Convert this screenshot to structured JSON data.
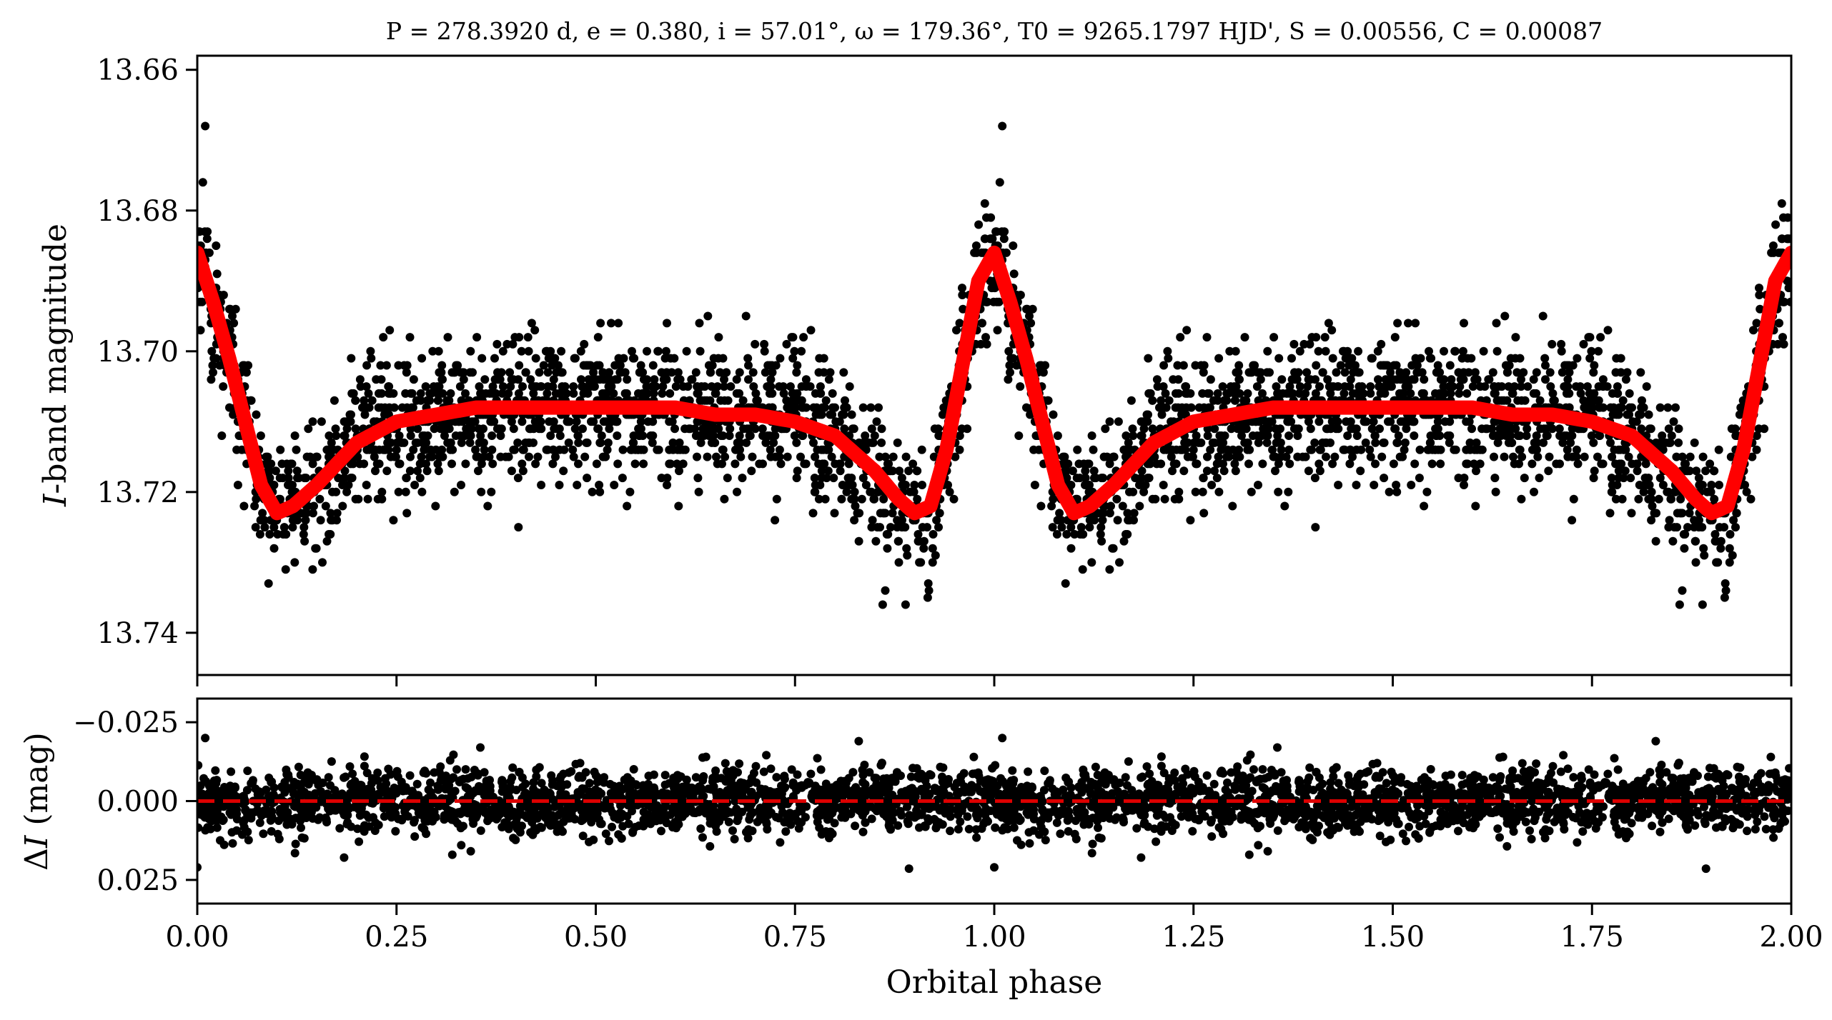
{
  "chart_data": [
    {
      "type": "scatter",
      "panel": "light curve",
      "title": "P = 278.3920 d, e = 0.380, i = 57.01°, ω = 179.36°, T0 = 9265.1797 HJD', S = 0.00556, C = 0.00087",
      "parameters": {
        "P_days": 278.392,
        "e": 0.38,
        "i_deg": 57.01,
        "omega_deg": 179.36,
        "T0_HJD": 9265.1797,
        "S": 0.00556,
        "C": 0.00087
      },
      "xlabel": "",
      "ylabel": "I-band magnitude",
      "xlim": [
        0.0,
        2.0
      ],
      "ylim": [
        13.746,
        13.658
      ],
      "y_inverted": true,
      "y_ticks": [
        "13.66",
        "13.68",
        "13.70",
        "13.72",
        "13.74"
      ],
      "y_tick_values": [
        13.66,
        13.68,
        13.7,
        13.72,
        13.74
      ],
      "x_ticks": [
        0.0,
        0.25,
        0.5,
        0.75,
        1.0,
        1.25,
        1.5,
        1.75,
        2.0
      ],
      "x_tick_labels_shown": false,
      "grid": false,
      "series": [
        {
          "kind": "points",
          "color": "#000000",
          "description_from_plot": "phase-folded observations, repeated over two cycles",
          "binned_mean_magnitude": {
            "x": [
              0.0,
              0.02,
              0.04,
              0.06,
              0.08,
              0.1,
              0.12,
              0.15,
              0.2,
              0.25,
              0.3,
              0.35,
              0.4,
              0.45,
              0.5,
              0.55,
              0.6,
              0.65,
              0.7,
              0.75,
              0.8,
              0.85,
              0.88,
              0.9,
              0.92,
              0.94,
              0.96,
              0.98,
              1.0
            ],
            "y": [
              13.686,
              13.693,
              13.7,
              13.71,
              13.719,
              13.723,
              13.722,
              13.719,
              13.713,
              13.71,
              13.709,
              13.708,
              13.708,
              13.708,
              13.708,
              13.708,
              13.708,
              13.709,
              13.709,
              13.71,
              13.712,
              13.717,
              13.721,
              13.723,
              13.722,
              13.714,
              13.702,
              13.69,
              13.686
            ]
          },
          "scatter_sigma_mag": 0.005,
          "outliers": [
            {
              "x": 0.01,
              "y": 13.668
            },
            {
              "x": 1.01,
              "y": 13.668
            },
            {
              "x": 0.86,
              "y": 13.736
            },
            {
              "x": 1.86,
              "y": 13.736
            }
          ]
        },
        {
          "kind": "line",
          "color": "#ff0000",
          "description_from_plot": "model fit",
          "x": [
            0.0,
            0.02,
            0.04,
            0.06,
            0.08,
            0.1,
            0.12,
            0.15,
            0.2,
            0.25,
            0.3,
            0.35,
            0.4,
            0.45,
            0.5,
            0.55,
            0.6,
            0.65,
            0.7,
            0.75,
            0.8,
            0.85,
            0.88,
            0.9,
            0.92,
            0.94,
            0.96,
            0.98,
            1.0,
            1.02,
            1.04,
            1.06,
            1.08,
            1.1,
            1.12,
            1.15,
            1.2,
            1.25,
            1.3,
            1.35,
            1.4,
            1.45,
            1.5,
            1.55,
            1.6,
            1.65,
            1.7,
            1.75,
            1.8,
            1.85,
            1.88,
            1.9,
            1.92,
            1.94,
            1.96,
            1.98,
            2.0
          ],
          "y": [
            13.686,
            13.693,
            13.701,
            13.71,
            13.719,
            13.723,
            13.722,
            13.719,
            13.713,
            13.71,
            13.709,
            13.708,
            13.708,
            13.708,
            13.708,
            13.708,
            13.708,
            13.709,
            13.709,
            13.71,
            13.712,
            13.717,
            13.721,
            13.723,
            13.722,
            13.714,
            13.702,
            13.69,
            13.686,
            13.693,
            13.701,
            13.71,
            13.719,
            13.723,
            13.722,
            13.719,
            13.713,
            13.71,
            13.709,
            13.708,
            13.708,
            13.708,
            13.708,
            13.708,
            13.708,
            13.709,
            13.709,
            13.71,
            13.712,
            13.717,
            13.721,
            13.723,
            13.722,
            13.714,
            13.702,
            13.69,
            13.686
          ]
        }
      ]
    },
    {
      "type": "scatter",
      "panel": "residuals",
      "xlabel": "Orbital phase",
      "ylabel": "ΔI (mag)",
      "xlim": [
        0.0,
        2.0
      ],
      "ylim": [
        0.0325,
        -0.0325
      ],
      "y_inverted": true,
      "x_ticks": [
        "0.00",
        "0.25",
        "0.50",
        "0.75",
        "1.00",
        "1.25",
        "1.50",
        "1.75",
        "2.00"
      ],
      "x_tick_values": [
        0.0,
        0.25,
        0.5,
        0.75,
        1.0,
        1.25,
        1.5,
        1.75,
        2.0
      ],
      "y_ticks": [
        "−0.025",
        "0.000",
        "0.025"
      ],
      "y_tick_values": [
        -0.025,
        0.0,
        0.025
      ],
      "grid": false,
      "series": [
        {
          "kind": "points",
          "color": "#000000",
          "description_from_plot": "residuals",
          "mean": 0.0,
          "scatter_sigma_mag": 0.005,
          "outliers": [
            {
              "x": 0.01,
              "y": -0.02
            },
            {
              "x": 1.01,
              "y": -0.02
            },
            {
              "x": 0.0,
              "y": 0.021
            },
            {
              "x": 1.0,
              "y": 0.021
            },
            {
              "x": 0.32,
              "y": 0.017
            },
            {
              "x": 1.32,
              "y": 0.017
            },
            {
              "x": 0.83,
              "y": -0.019
            },
            {
              "x": 1.83,
              "y": -0.019
            }
          ]
        },
        {
          "kind": "hline",
          "color": "#dd0000",
          "linestyle": "dashed",
          "y": 0.0
        }
      ]
    }
  ]
}
